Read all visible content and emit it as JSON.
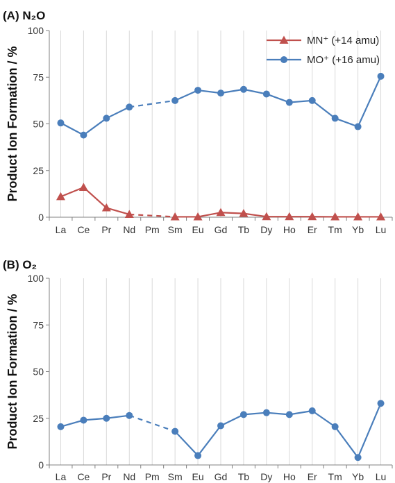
{
  "chart_data": [
    {
      "type": "line",
      "title": "(A) N₂O",
      "ylabel": "Product Ion Formation / %",
      "xlabel": "",
      "categories": [
        "La",
        "Ce",
        "Pr",
        "Nd",
        "Pm",
        "Sm",
        "Eu",
        "Gd",
        "Tb",
        "Dy",
        "Ho",
        "Er",
        "Tm",
        "Yb",
        "Lu"
      ],
      "ylim": [
        0,
        100
      ],
      "yticks": [
        0,
        25,
        50,
        75,
        100
      ],
      "grid": true,
      "legend": "top-right",
      "series": [
        {
          "name": "MN⁺ (+14 amu)",
          "color": "#c0504d",
          "marker": "triangle",
          "values": [
            11,
            16,
            5,
            1.5,
            null,
            0.2,
            0.2,
            2.5,
            2,
            0.3,
            0.3,
            0.3,
            0.2,
            0.2,
            0.2
          ],
          "dashed_gap": [
            3,
            5
          ]
        },
        {
          "name": "MO⁺ (+16 amu)",
          "color": "#4a7ebb",
          "marker": "circle",
          "values": [
            50.5,
            44,
            53,
            59,
            null,
            62.5,
            68,
            66.5,
            68.5,
            66,
            61.5,
            62.5,
            53,
            48.5,
            75.5
          ],
          "dashed_gap": [
            3,
            5
          ]
        }
      ]
    },
    {
      "type": "line",
      "title": "(B) O₂",
      "ylabel": "Product Ion Formation / %",
      "xlabel": "",
      "categories": [
        "La",
        "Ce",
        "Pr",
        "Nd",
        "Pm",
        "Sm",
        "Eu",
        "Gd",
        "Tb",
        "Dy",
        "Ho",
        "Er",
        "Tm",
        "Yb",
        "Lu"
      ],
      "ylim": [
        0,
        100
      ],
      "yticks": [
        0,
        25,
        50,
        75,
        100
      ],
      "grid": true,
      "series": [
        {
          "color": "#4a7ebb",
          "marker": "circle",
          "values": [
            20.5,
            24,
            25,
            26.5,
            null,
            18,
            5,
            21,
            27,
            28,
            27,
            29,
            20.5,
            4,
            33
          ],
          "dashed_gap": [
            3,
            5
          ]
        }
      ]
    }
  ]
}
